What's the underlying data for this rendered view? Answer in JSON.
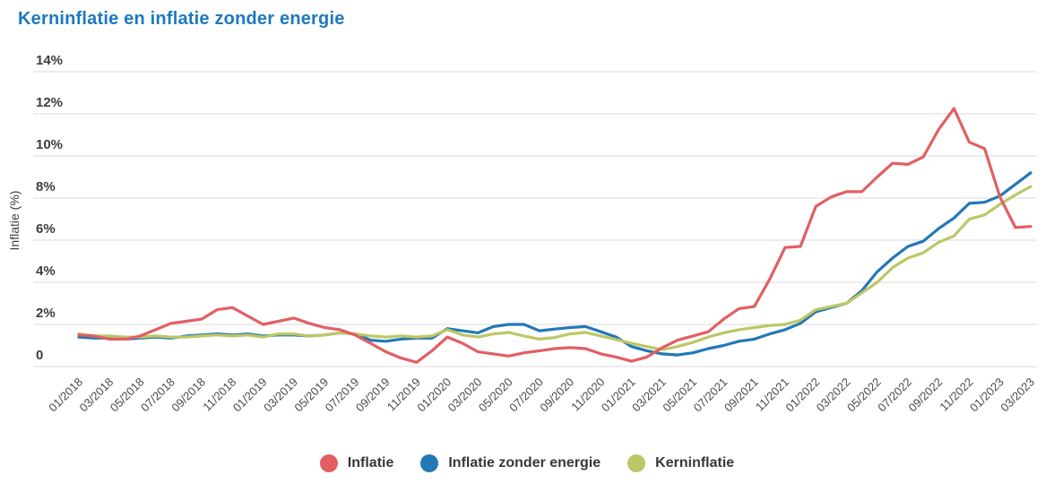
{
  "page": {
    "title": "Kerninflatie en inflatie zonder energie"
  },
  "chart_data": {
    "type": "line",
    "title": "Kerninflatie en inflatie zonder energie",
    "ylabel": "Inflatie (%)",
    "ylim": [
      0,
      14
    ],
    "grid": "horizontal",
    "legend_position": "bottom-center",
    "yticks": [
      {
        "value": 14,
        "label": "14%"
      },
      {
        "value": 12,
        "label": "12%"
      },
      {
        "value": 10,
        "label": "10%"
      },
      {
        "value": 8,
        "label": "8%"
      },
      {
        "value": 6,
        "label": "6%"
      },
      {
        "value": 4,
        "label": "4%"
      },
      {
        "value": 2,
        "label": "2%"
      },
      {
        "value": 0,
        "label": "0"
      }
    ],
    "x_tick_every": 2,
    "months": [
      "01/2018",
      "02/2018",
      "03/2018",
      "04/2018",
      "05/2018",
      "06/2018",
      "07/2018",
      "08/2018",
      "09/2018",
      "10/2018",
      "11/2018",
      "12/2018",
      "01/2019",
      "02/2019",
      "03/2019",
      "04/2019",
      "05/2019",
      "06/2019",
      "07/2019",
      "08/2019",
      "09/2019",
      "10/2019",
      "11/2019",
      "12/2019",
      "01/2020",
      "02/2020",
      "03/2020",
      "04/2020",
      "05/2020",
      "06/2020",
      "07/2020",
      "08/2020",
      "09/2020",
      "10/2020",
      "11/2020",
      "12/2020",
      "01/2021",
      "02/2021",
      "03/2021",
      "04/2021",
      "05/2021",
      "06/2021",
      "07/2021",
      "08/2021",
      "09/2021",
      "10/2021",
      "11/2021",
      "12/2021",
      "01/2022",
      "02/2022",
      "03/2022",
      "04/2022",
      "05/2022",
      "06/2022",
      "07/2022",
      "08/2022",
      "09/2022",
      "10/2022",
      "11/2022",
      "12/2022",
      "01/2023",
      "02/2023",
      "03/2023"
    ],
    "series": [
      {
        "name": "Inflatie",
        "color": "#e25e63",
        "z": 3,
        "values": [
          1.5,
          1.45,
          1.3,
          1.3,
          1.45,
          1.75,
          2.05,
          2.15,
          2.25,
          2.7,
          2.8,
          2.4,
          2.0,
          2.15,
          2.3,
          2.05,
          1.85,
          1.75,
          1.5,
          1.1,
          0.7,
          0.4,
          0.2,
          0.75,
          1.4,
          1.1,
          0.7,
          0.6,
          0.5,
          0.65,
          0.75,
          0.85,
          0.9,
          0.85,
          0.6,
          0.45,
          0.25,
          0.45,
          0.9,
          1.25,
          1.45,
          1.65,
          2.25,
          2.75,
          2.85,
          4.15,
          5.65,
          5.7,
          7.6,
          8.05,
          8.3,
          8.3,
          9.0,
          9.65,
          9.6,
          9.95,
          11.25,
          12.25,
          10.65,
          10.35,
          8.05,
          6.6,
          6.65
        ]
      },
      {
        "name": "Inflatie zonder energie",
        "color": "#2478b5",
        "z": 1,
        "values": [
          1.4,
          1.35,
          1.35,
          1.3,
          1.35,
          1.4,
          1.35,
          1.45,
          1.5,
          1.55,
          1.5,
          1.55,
          1.45,
          1.5,
          1.5,
          1.45,
          1.5,
          1.6,
          1.55,
          1.25,
          1.2,
          1.3,
          1.35,
          1.35,
          1.8,
          1.7,
          1.6,
          1.9,
          2.0,
          2.0,
          1.7,
          1.78,
          1.85,
          1.9,
          1.65,
          1.4,
          0.95,
          0.75,
          0.6,
          0.55,
          0.65,
          0.85,
          1.0,
          1.2,
          1.3,
          1.55,
          1.75,
          2.05,
          2.6,
          2.8,
          3.0,
          3.6,
          4.5,
          5.15,
          5.7,
          5.95,
          6.55,
          7.05,
          7.75,
          7.8,
          8.1,
          8.65,
          9.2
        ]
      },
      {
        "name": "Kerninflatie",
        "color": "#bdc765",
        "z": 2,
        "values": [
          1.55,
          1.45,
          1.45,
          1.4,
          1.4,
          1.45,
          1.4,
          1.4,
          1.45,
          1.5,
          1.45,
          1.5,
          1.4,
          1.55,
          1.55,
          1.45,
          1.5,
          1.6,
          1.55,
          1.45,
          1.4,
          1.45,
          1.4,
          1.45,
          1.75,
          1.5,
          1.4,
          1.55,
          1.62,
          1.45,
          1.3,
          1.38,
          1.55,
          1.62,
          1.45,
          1.28,
          1.1,
          0.95,
          0.8,
          0.95,
          1.15,
          1.4,
          1.6,
          1.75,
          1.85,
          1.95,
          2.0,
          2.2,
          2.7,
          2.85,
          3.0,
          3.5,
          4.0,
          4.7,
          5.15,
          5.4,
          5.9,
          6.2,
          7.0,
          7.2,
          7.7,
          8.15,
          8.55
        ]
      }
    ],
    "style": {
      "grid_color": "#dadada",
      "ytick_color": "#3d3d3d",
      "xtick_color": "#4a4a4a",
      "title_color": "#1c79c0"
    }
  }
}
